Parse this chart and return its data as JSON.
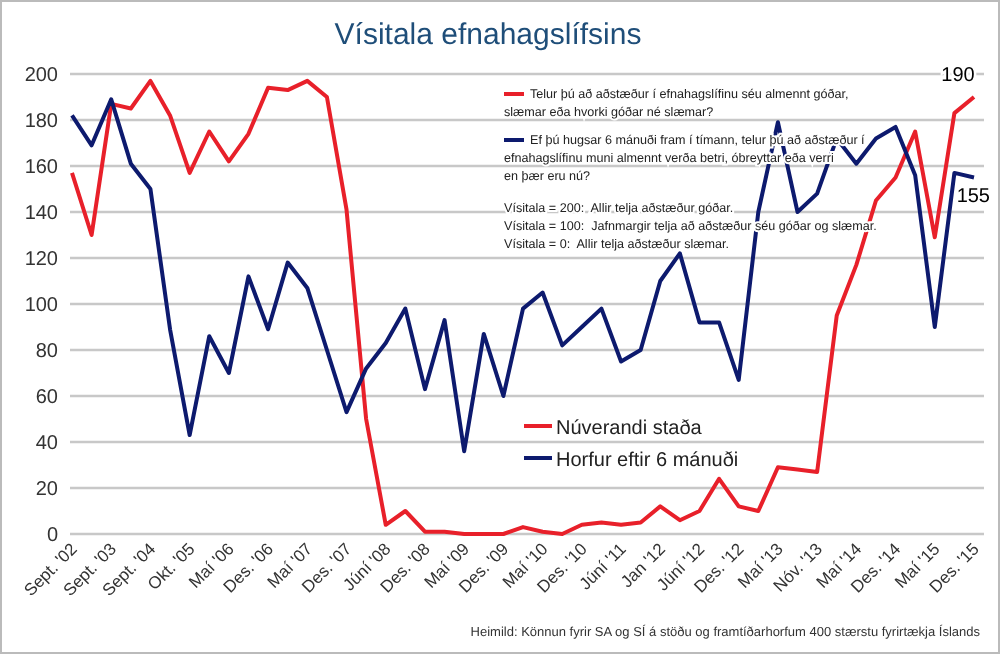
{
  "chart_data": {
    "type": "line",
    "title": "Vísitala efnahagslífsins",
    "categories": [
      "Sept. '02",
      null,
      "Sept. '03",
      null,
      "Sept. '04",
      null,
      "Okt. '05",
      null,
      "Maí '06",
      null,
      "Des. '06",
      null,
      "Maí '07",
      null,
      "Des. '07",
      null,
      "Júní '08",
      null,
      "Des. '08",
      null,
      "Maí '09",
      null,
      "Des. '09",
      null,
      "Maí '10",
      null,
      "Des. '10",
      null,
      "Júní '11",
      null,
      "Jan '12",
      null,
      "Júní '12",
      null,
      "Des. '12",
      null,
      "Maí '13",
      null,
      "Nóv. '13",
      null,
      "Maí '14",
      null,
      "Des. '14",
      null,
      "Maí '15",
      null,
      "Des. '15"
    ],
    "series": [
      {
        "name": "Núverandi staða",
        "color": "#e8202a",
        "values": [
          157,
          130,
          187,
          185,
          197,
          182,
          157,
          175,
          162,
          174,
          194,
          193,
          197,
          190,
          141,
          50,
          4,
          10,
          1,
          1,
          0,
          0,
          0,
          3,
          1,
          0,
          4,
          5,
          4,
          5,
          12,
          6,
          10,
          24,
          12,
          10,
          29,
          28,
          27,
          95,
          117,
          145,
          155,
          175,
          129,
          183,
          190
        ],
        "value_labels": [
          null,
          null,
          null,
          null,
          null,
          null,
          null,
          null,
          null,
          null,
          null,
          null,
          null,
          null,
          null,
          null,
          null,
          null,
          null,
          null,
          null,
          null,
          null,
          null,
          null,
          null,
          null,
          null,
          null,
          null,
          null,
          null,
          null,
          null,
          null,
          null,
          null,
          null,
          null,
          null,
          null,
          null,
          null,
          null,
          null,
          null,
          "190"
        ]
      },
      {
        "name": "Horfur eftir 6 mánuði",
        "color": "#0d1a6e",
        "values": [
          182,
          169,
          189,
          161,
          150,
          89,
          43,
          86,
          70,
          112,
          89,
          118,
          107,
          80,
          53,
          72,
          83,
          98,
          63,
          93,
          36,
          87,
          60,
          98,
          105,
          82,
          90,
          98,
          75,
          80,
          110,
          122,
          92,
          92,
          67,
          140,
          179,
          140,
          148,
          172,
          161,
          172,
          177,
          156,
          90,
          157,
          155
        ],
        "value_labels": [
          null,
          null,
          null,
          null,
          null,
          null,
          null,
          null,
          null,
          null,
          null,
          null,
          null,
          null,
          null,
          null,
          null,
          null,
          null,
          null,
          null,
          null,
          null,
          null,
          null,
          null,
          null,
          null,
          null,
          null,
          null,
          null,
          null,
          null,
          null,
          null,
          null,
          null,
          null,
          null,
          null,
          null,
          null,
          null,
          null,
          null,
          "155"
        ]
      }
    ],
    "ylim": [
      0,
      200
    ],
    "yticks": [
      0,
      20,
      40,
      60,
      80,
      100,
      120,
      140,
      160,
      180,
      200
    ],
    "grid": "y",
    "legend": "bottom right",
    "line_style": "solid",
    "marker": "none",
    "annotations": [
      "Telur þú að aðstæður í efnahagslífinu séu almennt góðar, slæmar eða hvorki góðar né slæmar?",
      "Ef þú hugsar 6 mánuði fram í tímann, telur þú að aðstæður í efnahagslífinu muni almennt verða betri, óbreyttar eða verri en þær eru nú?",
      "Vísitala = 200:  Allir telja aðstæður góðar.",
      "Vísitala = 100:  Jafnmargir telja að aðstæður séu góðar og slæmar.",
      "Vísitala = 0:  Allir telja aðstæður slæmar.",
      "Heimild: Könnun fyrir SA og SÍ á stöðu og framtíðarhorfum 400 stærstu fyrirtækja Íslands"
    ]
  }
}
